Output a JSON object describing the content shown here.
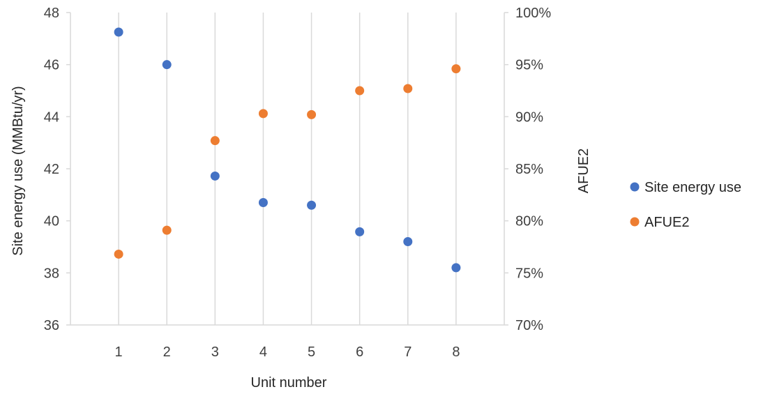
{
  "chart_data": {
    "type": "scatter",
    "title": "",
    "xlabel": "Unit number",
    "ylabel_left": "Site energy use (MMBtu/yr)",
    "ylabel_right": "AFUE2",
    "x_ticks": [
      "1",
      "2",
      "3",
      "4",
      "5",
      "6",
      "7",
      "8"
    ],
    "xlim": [
      0,
      9
    ],
    "ylim_left": [
      36,
      48
    ],
    "ylim_right": [
      0.7,
      1.0
    ],
    "y_ticks_left": [
      "36",
      "38",
      "40",
      "42",
      "44",
      "46",
      "48"
    ],
    "y_ticks_right": [
      "70%",
      "75%",
      "80%",
      "85%",
      "90%",
      "95%",
      "100%"
    ],
    "grid": "vertical",
    "legend_position": "right",
    "series": [
      {
        "name": "Site energy use",
        "axis": "left",
        "color": "#4472c4",
        "x": [
          1,
          2,
          3,
          4,
          5,
          6,
          7,
          8
        ],
        "y": [
          47.25,
          46.0,
          41.72,
          40.7,
          40.6,
          39.58,
          39.2,
          38.2
        ]
      },
      {
        "name": "AFUE2",
        "axis": "right",
        "color": "#ed7d31",
        "x": [
          1,
          2,
          3,
          4,
          5,
          6,
          7,
          8
        ],
        "y": [
          0.768,
          0.791,
          0.877,
          0.903,
          0.902,
          0.925,
          0.927,
          0.946
        ]
      }
    ]
  }
}
